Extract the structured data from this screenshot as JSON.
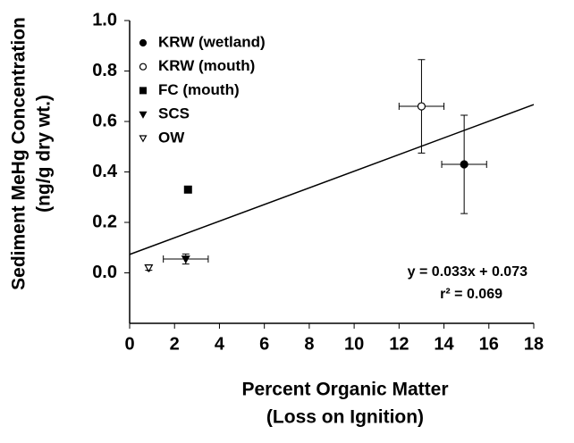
{
  "chart_data": {
    "type": "scatter",
    "ylabel": [
      "Sediment MeHg Concentration",
      "(ng/g dry wt.)"
    ],
    "xlabel": [
      "Percent Organic Matter",
      "(Loss on Ignition)"
    ],
    "xlim": [
      0,
      18
    ],
    "xticks": [
      0,
      2,
      4,
      6,
      8,
      10,
      12,
      14,
      16,
      18
    ],
    "ylim": [
      -0.2,
      1.0
    ],
    "yticks": [
      {
        "value": 0,
        "label": "0.0"
      },
      0.2,
      0.4,
      0.6,
      0.8,
      {
        "value": 1,
        "label": "1.0"
      }
    ],
    "series": [
      {
        "name": "KRW (wetland)",
        "marker": "circle-filled",
        "color": "#000000",
        "x": [
          14.9
        ],
        "values": [
          0.43
        ],
        "xerr": [
          1.0
        ],
        "yerr": [
          0.195
        ]
      },
      {
        "name": "KRW (mouth)",
        "marker": "circle-open",
        "color": "#000000",
        "x": [
          13.0
        ],
        "values": [
          0.66
        ],
        "xerr": [
          1.0
        ],
        "yerr": [
          0.185
        ]
      },
      {
        "name": "FC (mouth)",
        "marker": "square-filled",
        "color": "#000000",
        "x": [
          2.6
        ],
        "values": [
          0.33
        ],
        "xerr": [
          0.1
        ],
        "yerr": [
          0.01
        ]
      },
      {
        "name": "SCS",
        "marker": "triangle-down-filled",
        "color": "#000000",
        "x": [
          2.5
        ],
        "values": [
          0.055
        ],
        "xerr": [
          1.0
        ],
        "yerr": [
          0.02
        ]
      },
      {
        "name": "OW",
        "marker": "triangle-down-open",
        "color": "#000000",
        "x": [
          0.85
        ],
        "values": [
          0.02
        ],
        "xerr": [
          0.05
        ],
        "yerr": [
          0.01
        ]
      }
    ],
    "trendline": {
      "slope": 0.033,
      "intercept": 0.073
    },
    "annotations": [
      "y = 0.033x + 0.073",
      "r² = 0.069"
    ]
  }
}
